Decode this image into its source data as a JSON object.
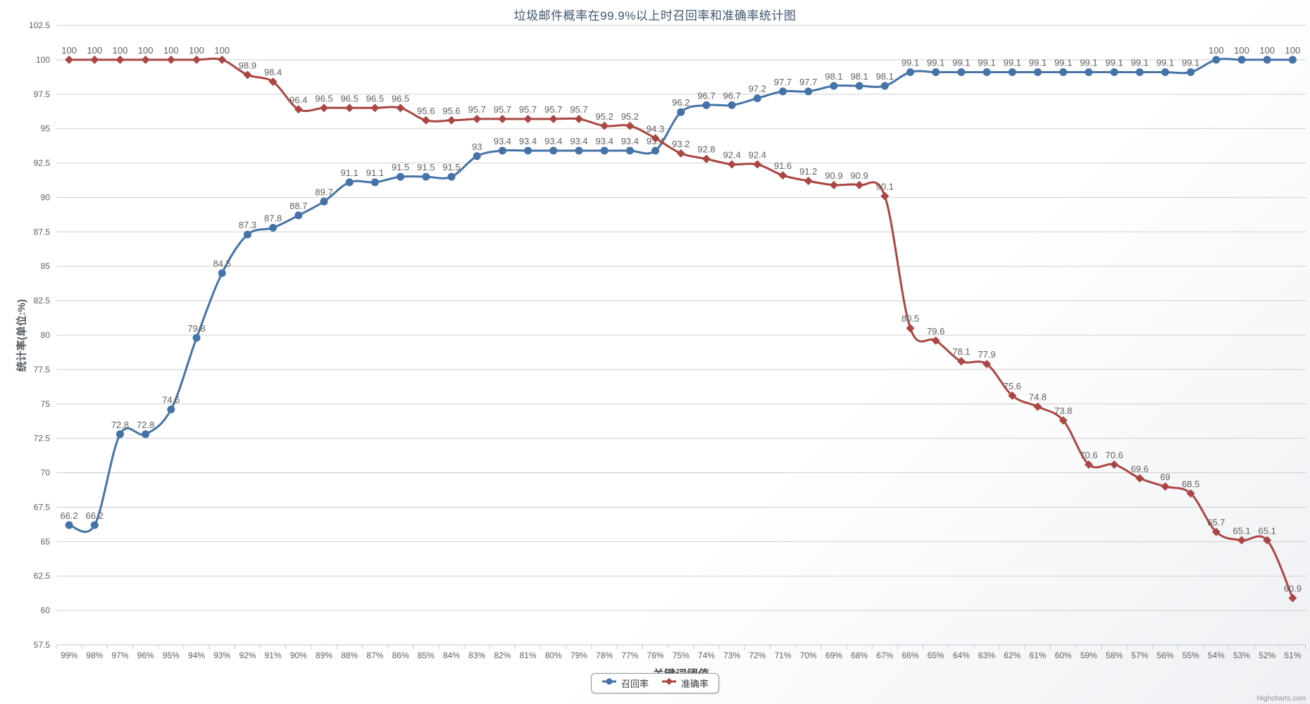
{
  "title": "垃圾邮件概率在99.9%以上时召回率和准确率统计图",
  "credit": "Highcharts.com",
  "colors": {
    "title_text": "#3E576F",
    "recall_series": "#4572A7",
    "accuracy_series": "#AA4643",
    "grid_line": "#CFCFCF",
    "axis_line": "#C0C8D0",
    "tick_label": "#606060",
    "data_label": "#5F5F5F"
  },
  "chart_data": {
    "type": "line",
    "subtype": "spline",
    "title": "垃圾邮件概率在99.9%以上时召回率和准确率统计图",
    "xlabel": "关键词阈值",
    "ylabel": "统计率(单位:%)",
    "ylim": [
      57.5,
      102.5
    ],
    "ytick_step": 2.5,
    "grid": true,
    "legend_position": "bottom-center",
    "categories": [
      "99%",
      "98%",
      "97%",
      "96%",
      "95%",
      "94%",
      "93%",
      "92%",
      "91%",
      "90%",
      "89%",
      "88%",
      "87%",
      "86%",
      "85%",
      "84%",
      "83%",
      "82%",
      "81%",
      "80%",
      "79%",
      "78%",
      "77%",
      "76%",
      "75%",
      "74%",
      "73%",
      "72%",
      "71%",
      "70%",
      "69%",
      "68%",
      "67%",
      "66%",
      "65%",
      "64%",
      "63%",
      "62%",
      "61%",
      "60%",
      "59%",
      "58%",
      "57%",
      "56%",
      "55%",
      "54%",
      "53%",
      "52%",
      "51%"
    ],
    "series": [
      {
        "name": "召回率",
        "color": "#4572A7",
        "marker": "circle",
        "values": [
          66.2,
          66.2,
          72.8,
          72.8,
          74.6,
          79.8,
          84.5,
          87.3,
          87.8,
          88.7,
          89.7,
          91.1,
          91.1,
          91.5,
          91.5,
          91.5,
          93,
          93.4,
          93.4,
          93.4,
          93.4,
          93.4,
          93.4,
          93.4,
          96.2,
          96.7,
          96.7,
          97.2,
          97.7,
          97.7,
          98.1,
          98.1,
          98.1,
          99.1,
          99.1,
          99.1,
          99.1,
          99.1,
          99.1,
          99.1,
          99.1,
          99.1,
          99.1,
          99.1,
          99.1,
          100,
          100,
          100,
          100
        ]
      },
      {
        "name": "准确率",
        "color": "#AA4643",
        "marker": "diamond",
        "values": [
          100,
          100,
          100,
          100,
          100,
          100,
          100,
          98.9,
          98.4,
          96.4,
          96.5,
          96.5,
          96.5,
          96.5,
          95.6,
          95.6,
          95.7,
          95.7,
          95.7,
          95.7,
          95.7,
          95.2,
          95.2,
          94.3,
          93.2,
          92.8,
          92.4,
          92.4,
          91.6,
          91.2,
          90.9,
          90.9,
          90.1,
          80.5,
          79.6,
          78.1,
          77.9,
          75.6,
          74.8,
          73.8,
          70.6,
          70.6,
          69.6,
          69,
          68.5,
          65.7,
          65.1,
          65.1,
          60.9
        ]
      }
    ]
  }
}
